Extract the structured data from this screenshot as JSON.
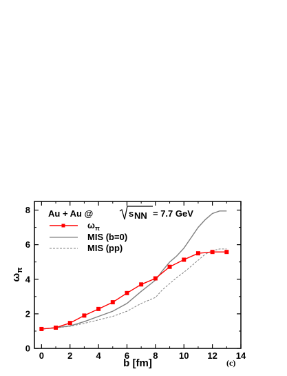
{
  "chart_data": {
    "type": "line",
    "title_prefix": "Au + Au @ ",
    "title_sqrt_var": "s",
    "title_sqrt_sub": "NN",
    "title_suffix": " = 7.7 GeV",
    "xlabel": "b [fm]",
    "ylabel_main": "ω",
    "ylabel_sub": "π",
    "xlim": [
      -0.5,
      14
    ],
    "ylim": [
      0,
      8.5
    ],
    "xticks": [
      0,
      2,
      4,
      6,
      8,
      10,
      12,
      14
    ],
    "yticks": [
      0,
      2,
      4,
      6,
      8
    ],
    "panel_label": "(c)",
    "legend_position": "top-left",
    "grid": false,
    "series": [
      {
        "name": "ω",
        "name_sub": "π",
        "style": "solid-markers",
        "color": "#ff0000",
        "x": [
          0,
          1,
          2,
          3,
          4,
          5,
          6,
          7,
          8,
          9,
          10,
          11,
          12,
          13
        ],
        "y": [
          1.12,
          1.2,
          1.47,
          1.9,
          2.28,
          2.67,
          3.2,
          3.7,
          4.05,
          4.72,
          5.13,
          5.5,
          5.58,
          5.58
        ]
      },
      {
        "name": "MIS (b=0)",
        "style": "solid",
        "color": "#808080",
        "x": [
          0,
          1,
          2,
          3,
          4,
          5,
          6,
          7,
          8,
          8.5,
          9,
          9.5,
          10,
          10.5,
          11,
          11.5,
          12,
          12.5,
          13
        ],
        "y": [
          1.12,
          1.2,
          1.3,
          1.55,
          1.85,
          2.15,
          2.6,
          3.3,
          3.95,
          4.5,
          5.0,
          5.35,
          5.8,
          6.4,
          7.0,
          7.45,
          7.8,
          7.95,
          7.95
        ]
      },
      {
        "name": "MIS (pp)",
        "style": "dashed",
        "color": "#808080",
        "x": [
          0,
          1,
          2,
          3,
          4,
          5,
          6,
          7,
          8,
          8.5,
          9,
          9.5,
          10,
          10.5,
          11,
          11.5,
          12,
          12.5,
          13
        ],
        "y": [
          1.12,
          1.18,
          1.28,
          1.45,
          1.65,
          1.85,
          2.15,
          2.6,
          2.95,
          3.4,
          3.75,
          4.1,
          4.4,
          4.75,
          5.1,
          5.45,
          5.65,
          5.75,
          5.75
        ]
      }
    ]
  }
}
